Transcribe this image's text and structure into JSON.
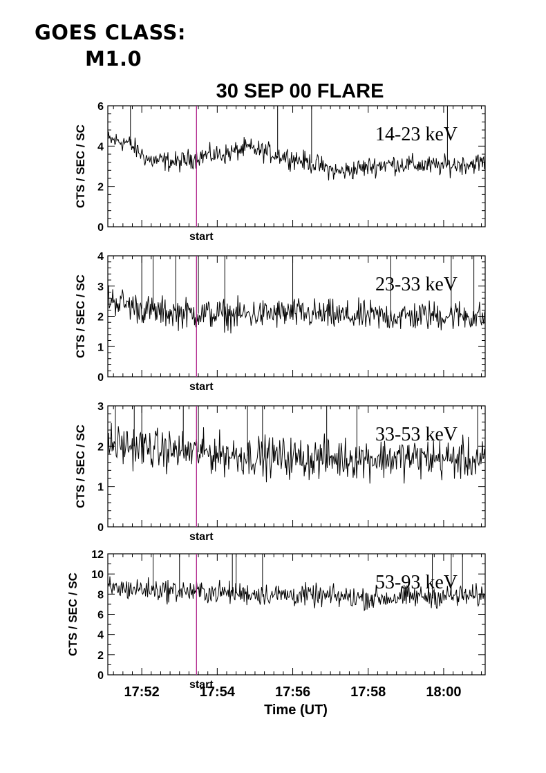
{
  "header": {
    "goes_line1": "GOES CLASS:",
    "goes_line2": "M1.0"
  },
  "chart_data": {
    "type": "line",
    "title": "30 SEP 00 FLARE",
    "xlabel": "Time (UT)",
    "x_ticks": [
      "17:52",
      "17:54",
      "17:56",
      "17:58",
      "18:00"
    ],
    "x_range_minutes_after_1700": [
      51.1,
      61.1
    ],
    "start_marker": {
      "label": "start",
      "time_minute": 53.45,
      "color": "#b0208a"
    },
    "panels": [
      {
        "band": "14-23 keV",
        "ylabel": "CTS / SEC / SC",
        "ylim": [
          0,
          6
        ],
        "yticks": [
          "0",
          "2",
          "4",
          "6"
        ],
        "baseline": [
          [
            51.1,
            4.3
          ],
          [
            51.6,
            4.2
          ],
          [
            52.2,
            3.3
          ],
          [
            53.0,
            3.2
          ],
          [
            53.5,
            3.5
          ],
          [
            54.2,
            3.6
          ],
          [
            54.8,
            3.9
          ],
          [
            55.3,
            3.7
          ],
          [
            56.0,
            3.4
          ],
          [
            56.6,
            3.1
          ],
          [
            57.2,
            2.7
          ],
          [
            57.8,
            2.9
          ],
          [
            58.4,
            3.1
          ],
          [
            59.0,
            3.1
          ],
          [
            59.8,
            3.0
          ],
          [
            60.5,
            3.1
          ],
          [
            61.1,
            3.2
          ]
        ],
        "noise_amplitude": 0.45,
        "spikes": [
          [
            51.7,
            6.0
          ],
          [
            55.6,
            6.0
          ],
          [
            56.5,
            6.0
          ],
          [
            60.1,
            6.0
          ]
        ]
      },
      {
        "band": "23-33 keV",
        "ylabel": "CTS / SEC / SC",
        "ylim": [
          0,
          4
        ],
        "yticks": [
          "0",
          "1",
          "2",
          "3",
          "4"
        ],
        "baseline": [
          [
            51.1,
            2.6
          ],
          [
            51.7,
            2.35
          ],
          [
            52.3,
            2.15
          ],
          [
            53.2,
            2.1
          ],
          [
            54.5,
            2.05
          ],
          [
            56.0,
            2.1
          ],
          [
            57.5,
            2.0
          ],
          [
            59.0,
            2.0
          ],
          [
            60.5,
            2.05
          ],
          [
            61.1,
            1.95
          ]
        ],
        "noise_amplitude": 0.45,
        "spikes": [
          [
            52.0,
            4.0
          ],
          [
            52.3,
            4.0
          ],
          [
            52.9,
            4.0
          ],
          [
            53.5,
            4.0
          ],
          [
            54.2,
            4.0
          ],
          [
            56.0,
            4.0
          ],
          [
            58.6,
            4.0
          ],
          [
            60.2,
            4.0
          ],
          [
            60.8,
            4.0
          ]
        ]
      },
      {
        "band": "33-53 keV",
        "ylabel": "CTS / SEC / SC",
        "ylim": [
          0,
          3
        ],
        "yticks": [
          "0",
          "1",
          "2",
          "3"
        ],
        "baseline": [
          [
            51.1,
            2.05
          ],
          [
            51.8,
            2.0
          ],
          [
            52.5,
            1.9
          ],
          [
            53.5,
            1.85
          ],
          [
            55.0,
            1.75
          ],
          [
            56.5,
            1.7
          ],
          [
            58.0,
            1.7
          ],
          [
            59.5,
            1.7
          ],
          [
            61.1,
            1.65
          ]
        ],
        "noise_amplitude": 0.45,
        "spikes": [
          [
            51.3,
            3.0
          ],
          [
            51.8,
            3.0
          ],
          [
            52.0,
            3.0
          ],
          [
            53.1,
            3.0
          ],
          [
            53.5,
            3.0
          ],
          [
            54.8,
            3.0
          ],
          [
            55.2,
            3.0
          ],
          [
            56.9,
            3.0
          ],
          [
            57.7,
            3.0
          ],
          [
            60.9,
            3.0
          ]
        ]
      },
      {
        "band": "53-93 keV",
        "ylabel": "CTS / SEC / SC",
        "ylim": [
          0,
          12
        ],
        "yticks": [
          "0",
          "2",
          "4",
          "6",
          "8",
          "10",
          "12"
        ],
        "baseline": [
          [
            51.1,
            8.6
          ],
          [
            52.0,
            8.5
          ],
          [
            53.0,
            8.3
          ],
          [
            54.5,
            8.1
          ],
          [
            56.0,
            7.9
          ],
          [
            57.5,
            7.7
          ],
          [
            58.5,
            7.6
          ],
          [
            59.5,
            7.8
          ],
          [
            61.1,
            7.8
          ]
        ],
        "noise_amplitude": 1.0,
        "spikes": [
          [
            52.3,
            12.0
          ],
          [
            53.0,
            12.0
          ],
          [
            54.4,
            12.0
          ],
          [
            54.5,
            12.0
          ],
          [
            55.2,
            12.0
          ],
          [
            59.7,
            12.0
          ],
          [
            60.2,
            12.0
          ],
          [
            60.5,
            12.0
          ]
        ]
      }
    ]
  }
}
